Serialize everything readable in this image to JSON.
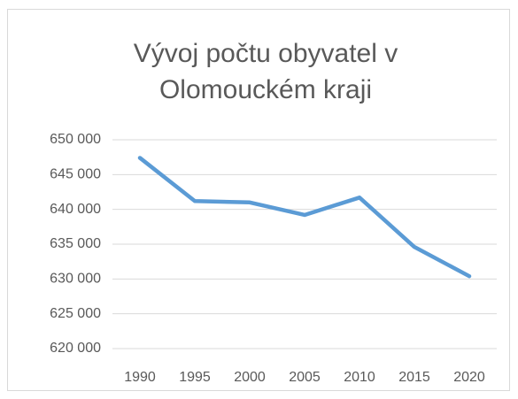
{
  "chart_data": {
    "type": "line",
    "title": "Vývoj počtu obyvatel v Olomouckém kraji",
    "categories": [
      "1990",
      "1995",
      "2000",
      "2005",
      "2010",
      "2015",
      "2020"
    ],
    "values": [
      647400,
      641200,
      641000,
      639200,
      641700,
      634600,
      630400
    ],
    "color": "#5b9bd5",
    "ylim": [
      620000,
      650000
    ],
    "yticks": [
      {
        "value": 620000,
        "label": "620 000"
      },
      {
        "value": 625000,
        "label": "625 000"
      },
      {
        "value": 630000,
        "label": "630 000"
      },
      {
        "value": 635000,
        "label": "635 000"
      },
      {
        "value": 640000,
        "label": "640 000"
      },
      {
        "value": 645000,
        "label": "645 000"
      },
      {
        "value": 650000,
        "label": "650 000"
      }
    ],
    "grid": true
  }
}
